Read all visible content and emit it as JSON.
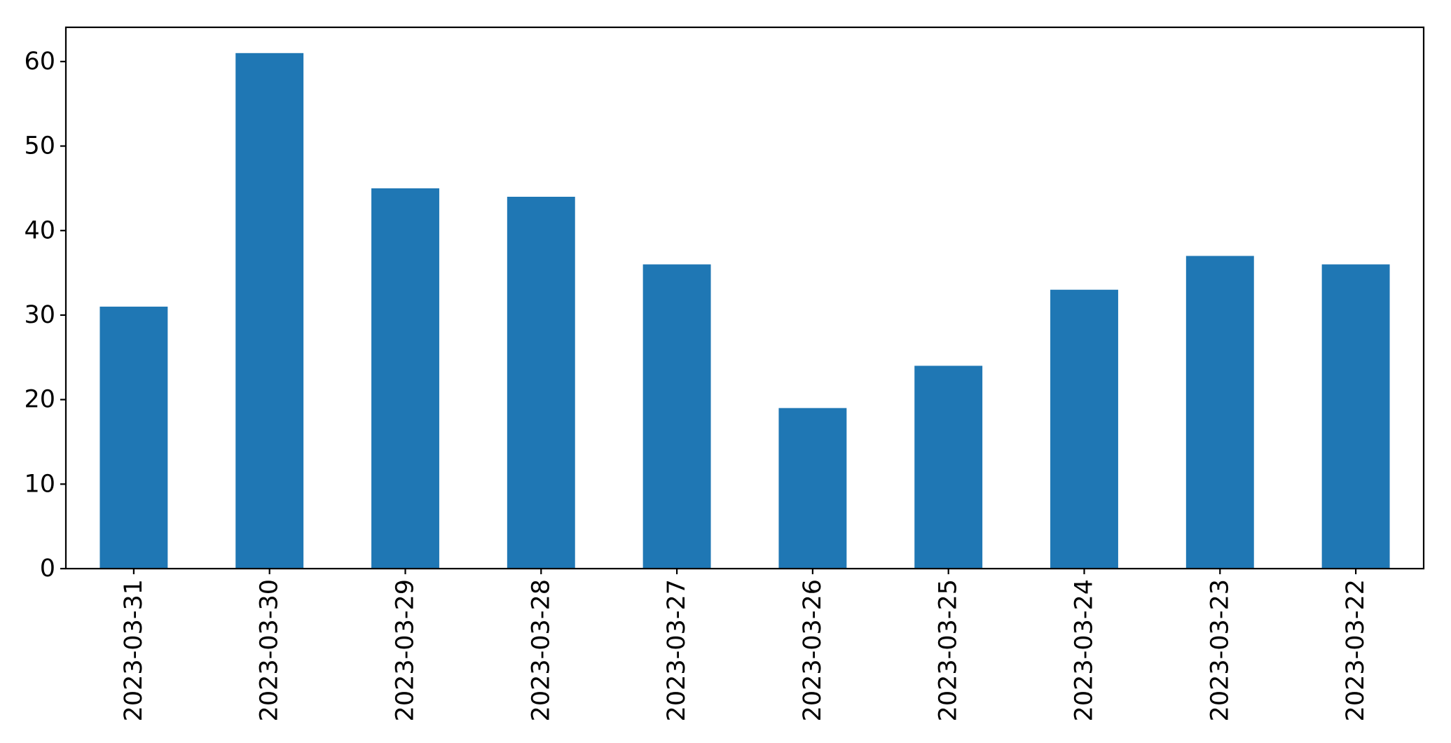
{
  "chart_data": {
    "type": "bar",
    "title": "",
    "xlabel": "",
    "ylabel": "",
    "categories": [
      "2023-03-31",
      "2023-03-30",
      "2023-03-29",
      "2023-03-28",
      "2023-03-27",
      "2023-03-26",
      "2023-03-25",
      "2023-03-24",
      "2023-03-23",
      "2023-03-22"
    ],
    "values": [
      31,
      61,
      45,
      44,
      36,
      19,
      24,
      33,
      37,
      36
    ],
    "yticks": [
      0,
      10,
      20,
      30,
      40,
      50,
      60
    ],
    "ylim": [
      0,
      64.05
    ],
    "bar_color": "#1f77b4",
    "spine_color": "#000000",
    "tick_label_color": "#000000",
    "x_tick_label_rotation_deg": 90,
    "grid": false,
    "legend": "none"
  }
}
